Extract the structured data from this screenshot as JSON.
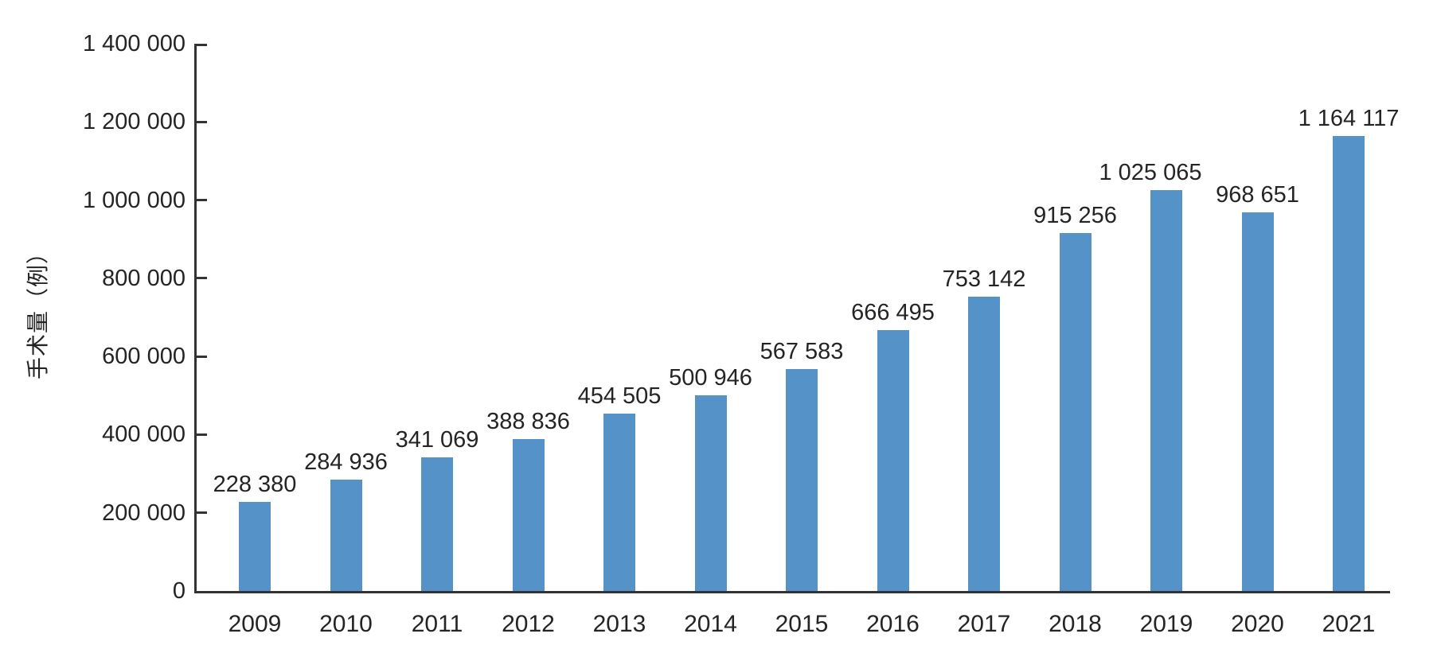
{
  "chart_data": {
    "type": "bar",
    "title": "",
    "xlabel": "",
    "ylabel": "手术量（例）",
    "categories": [
      "2009",
      "2010",
      "2011",
      "2012",
      "2013",
      "2014",
      "2015",
      "2016",
      "2017",
      "2018",
      "2019",
      "2020",
      "2021"
    ],
    "values": [
      228380,
      284936,
      341069,
      388836,
      454505,
      500946,
      567583,
      666495,
      753142,
      915256,
      1025065,
      968651,
      1164117
    ],
    "value_labels": [
      "228 380",
      "284 936",
      "341 069",
      "388 836",
      "454 505",
      "500 946",
      "567 583",
      "666 495",
      "753 142",
      "915 256",
      "1 025 065",
      "968 651",
      "1 164 117"
    ],
    "ylim": [
      0,
      1400000
    ],
    "ytick_step": 200000,
    "ytick_labels": [
      "0",
      "200 000",
      "400 000",
      "600 000",
      "800 000",
      "1 000 000",
      "1 200 000",
      "1 400 000"
    ],
    "grid": false,
    "legend": null,
    "bar_color": "#5592C8",
    "axis_color": "#333333",
    "text_color": "#242424",
    "background_color": "#ffffff"
  }
}
